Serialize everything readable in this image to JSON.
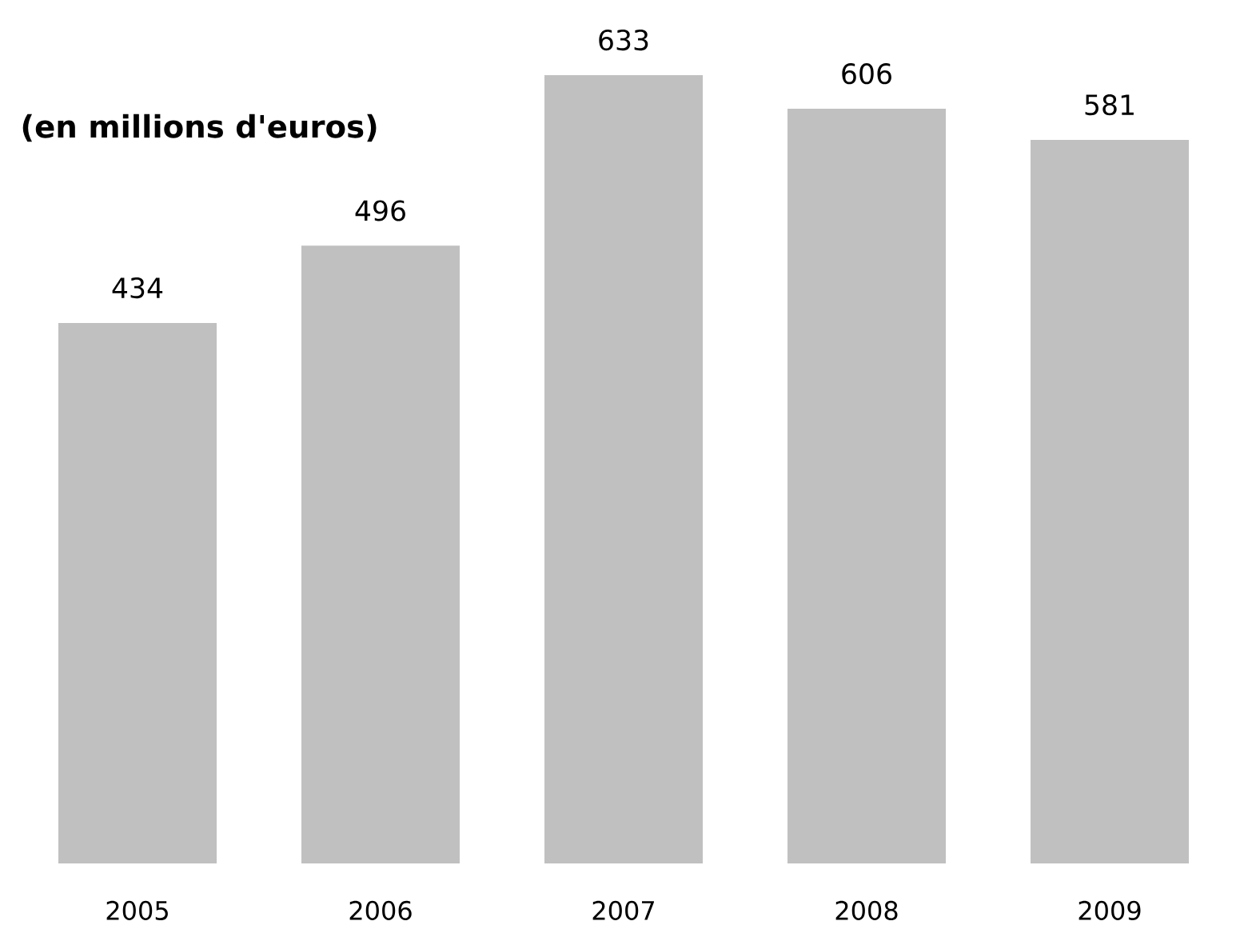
{
  "chart_data": {
    "type": "bar",
    "title": "(en millions d'euros)",
    "categories": [
      "2005",
      "2006",
      "2007",
      "2008",
      "2009"
    ],
    "values": [
      434,
      496,
      633,
      606,
      581
    ],
    "color": "#c0c0c0",
    "data_labels": true
  }
}
